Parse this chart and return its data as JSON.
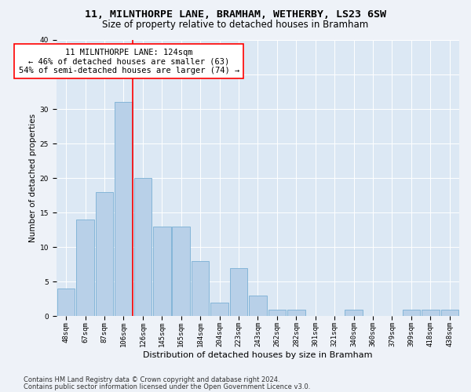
{
  "title1": "11, MILNTHORPE LANE, BRAMHAM, WETHERBY, LS23 6SW",
  "title2": "Size of property relative to detached houses in Bramham",
  "xlabel": "Distribution of detached houses by size in Bramham",
  "ylabel": "Number of detached properties",
  "categories": [
    "48sqm",
    "67sqm",
    "87sqm",
    "106sqm",
    "126sqm",
    "145sqm",
    "165sqm",
    "184sqm",
    "204sqm",
    "223sqm",
    "243sqm",
    "262sqm",
    "282sqm",
    "301sqm",
    "321sqm",
    "340sqm",
    "360sqm",
    "379sqm",
    "399sqm",
    "418sqm",
    "438sqm"
  ],
  "values": [
    4,
    14,
    18,
    31,
    20,
    13,
    13,
    8,
    2,
    7,
    3,
    1,
    1,
    0,
    0,
    1,
    0,
    0,
    1,
    1,
    1
  ],
  "bar_color": "#b8d0e8",
  "bar_edge_color": "#7aafd4",
  "bar_linewidth": 0.6,
  "vline_color": "red",
  "vline_x": 3.47,
  "annotation_text": "11 MILNTHORPE LANE: 124sqm\n← 46% of detached houses are smaller (63)\n54% of semi-detached houses are larger (74) →",
  "annotation_box_color": "white",
  "annotation_box_edge": "red",
  "ylim": [
    0,
    40
  ],
  "yticks": [
    0,
    5,
    10,
    15,
    20,
    25,
    30,
    35,
    40
  ],
  "footer_line1": "Contains HM Land Registry data © Crown copyright and database right 2024.",
  "footer_line2": "Contains public sector information licensed under the Open Government Licence v3.0.",
  "background_color": "#eef2f8",
  "plot_bg_color": "#dce8f4",
  "grid_color": "#ffffff",
  "title1_fontsize": 9.5,
  "title2_fontsize": 8.5,
  "xlabel_fontsize": 8,
  "ylabel_fontsize": 7.5,
  "tick_fontsize": 6.5,
  "annotation_fontsize": 7.5,
  "footer_fontsize": 6
}
